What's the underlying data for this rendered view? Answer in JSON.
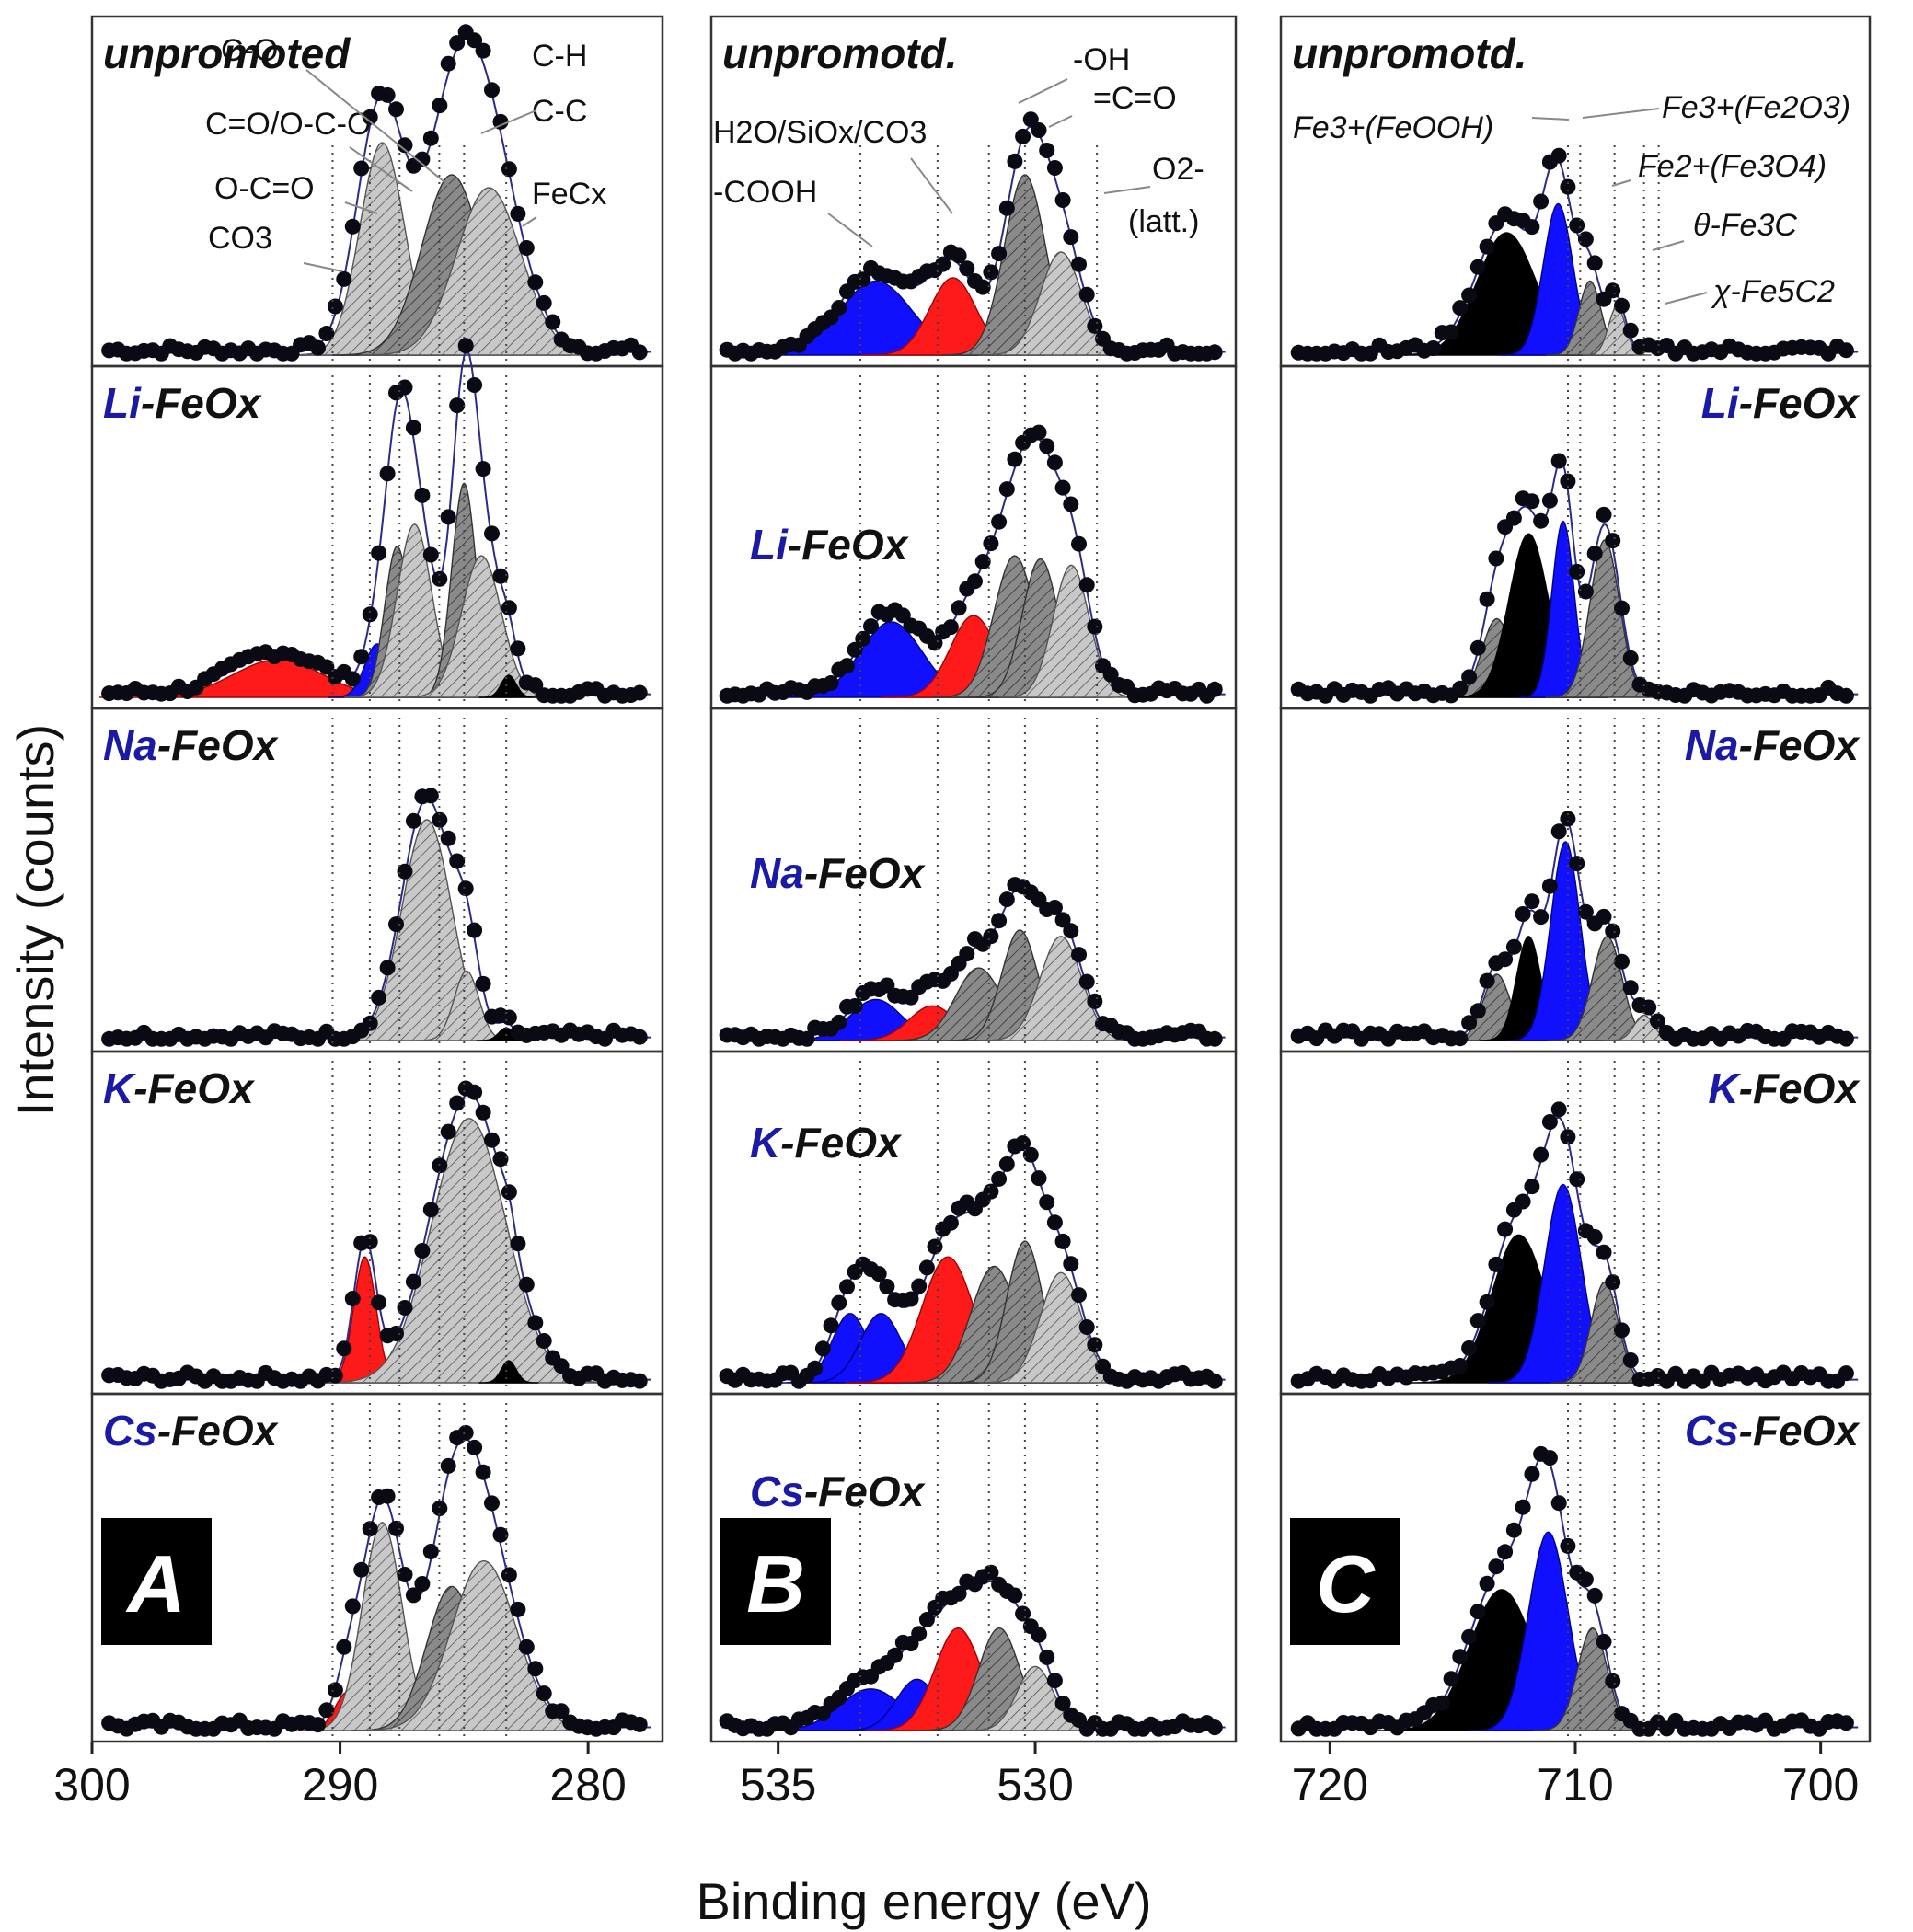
{
  "figure": {
    "y_axis_label": "Intensity (counts)",
    "x_axis_label": "Binding energy (eV)",
    "panel_letters": [
      "A",
      "B",
      "C"
    ]
  },
  "colors": {
    "fe_ox_navy": "#1a1aa6",
    "component_red": "#ff1a1a",
    "component_blue": "#1010ff",
    "component_black": "#000000",
    "component_dark_gray": "#7a7a7a",
    "component_light_gray": "#c8c8c8",
    "envelope": "#2b2b8c",
    "data_points": "#0a0a14"
  },
  "chart_data": [
    {
      "type": "line",
      "id": "A",
      "region": "C 1s",
      "x_range": [
        300,
        277
      ],
      "x_ticks": [
        300,
        290,
        280
      ],
      "reference_lines": [
        290.3,
        288.8,
        287.6,
        286.0,
        285.0,
        283.3
      ],
      "annotations": [
        "unpromoted",
        "C-O",
        "C-H",
        "C-C",
        "C=O/O-C-O",
        "O-C=O",
        "CO3",
        "FeCx"
      ],
      "rows": [
        {
          "label_prefix": "",
          "label_suffix": "unpromoted",
          "components": [
            {
              "center": 289.2,
              "height": 0.08,
              "width": 0.8,
              "color": "blue"
            },
            {
              "center": 288.3,
              "height": 0.66,
              "width": 0.9,
              "color": "light_gray"
            },
            {
              "center": 285.5,
              "height": 0.56,
              "width": 1.2,
              "color": "dark_gray"
            },
            {
              "center": 284.0,
              "height": 0.52,
              "width": 1.3,
              "color": "light_gray"
            }
          ]
        },
        {
          "label_prefix": "Li",
          "label_suffix": "-FeOx",
          "components": [
            {
              "center": 292.5,
              "height": 0.12,
              "width": 1.8,
              "color": "red"
            },
            {
              "center": 288.5,
              "height": 0.17,
              "width": 0.5,
              "color": "blue"
            },
            {
              "center": 287.7,
              "height": 0.48,
              "width": 0.5,
              "color": "dark_gray"
            },
            {
              "center": 287.0,
              "height": 0.55,
              "width": 0.7,
              "color": "light_gray"
            },
            {
              "center": 285.0,
              "height": 0.68,
              "width": 0.5,
              "color": "dark_gray"
            },
            {
              "center": 284.3,
              "height": 0.45,
              "width": 0.8,
              "color": "light_gray"
            },
            {
              "center": 283.2,
              "height": 0.07,
              "width": 0.3,
              "color": "black"
            }
          ]
        },
        {
          "label_prefix": "Na",
          "label_suffix": "-FeOx",
          "components": [
            {
              "center": 286.5,
              "height": 0.7,
              "width": 1.0,
              "color": "light_gray"
            },
            {
              "center": 284.9,
              "height": 0.22,
              "width": 0.5,
              "color": "light_gray"
            },
            {
              "center": 283.3,
              "height": 0.04,
              "width": 0.3,
              "color": "black"
            }
          ]
        },
        {
          "label_prefix": "K",
          "label_suffix": "-FeOx",
          "components": [
            {
              "center": 289.0,
              "height": 0.4,
              "width": 0.45,
              "color": "red"
            },
            {
              "center": 284.8,
              "height": 0.84,
              "width": 1.5,
              "color": "light_gray"
            },
            {
              "center": 283.2,
              "height": 0.07,
              "width": 0.3,
              "color": "black"
            }
          ]
        },
        {
          "label_prefix": "Cs",
          "label_suffix": "-FeOx",
          "components": [
            {
              "center": 289.7,
              "height": 0.12,
              "width": 0.5,
              "color": "red"
            },
            {
              "center": 288.3,
              "height": 0.65,
              "width": 0.8,
              "color": "light_gray"
            },
            {
              "center": 285.5,
              "height": 0.45,
              "width": 1.0,
              "color": "dark_gray"
            },
            {
              "center": 284.2,
              "height": 0.53,
              "width": 1.3,
              "color": "light_gray"
            }
          ]
        }
      ]
    },
    {
      "type": "line",
      "id": "B",
      "region": "O 1s",
      "x_range": [
        536.3,
        526.1
      ],
      "x_ticks": [
        535,
        530
      ],
      "reference_lines": [
        533.4,
        531.9,
        530.9,
        530.2,
        528.8
      ],
      "annotations": [
        "unpromotd.",
        "-OH",
        "=C=O",
        "O2-",
        "(latt.)",
        "H2O/SiOx/CO3",
        "-COOH"
      ],
      "rows": [
        {
          "label_prefix": "",
          "label_suffix": "unpromotd.",
          "components": [
            {
              "center": 533.1,
              "height": 0.23,
              "width": 0.7,
              "color": "blue"
            },
            {
              "center": 531.6,
              "height": 0.24,
              "width": 0.45,
              "color": "red"
            },
            {
              "center": 530.2,
              "height": 0.56,
              "width": 0.4,
              "color": "dark_gray"
            },
            {
              "center": 529.5,
              "height": 0.32,
              "width": 0.4,
              "color": "light_gray"
            }
          ]
        },
        {
          "label_prefix": "Li",
          "label_suffix": "-FeOx",
          "components": [
            {
              "center": 532.8,
              "height": 0.24,
              "width": 0.6,
              "color": "blue"
            },
            {
              "center": 531.2,
              "height": 0.26,
              "width": 0.45,
              "color": "red"
            },
            {
              "center": 530.4,
              "height": 0.45,
              "width": 0.4,
              "color": "dark_gray"
            },
            {
              "center": 529.9,
              "height": 0.44,
              "width": 0.35,
              "color": "dark_gray"
            },
            {
              "center": 529.3,
              "height": 0.42,
              "width": 0.35,
              "color": "light_gray"
            }
          ]
        },
        {
          "label_prefix": "Na",
          "label_suffix": "-FeOx",
          "components": [
            {
              "center": 533.1,
              "height": 0.13,
              "width": 0.5,
              "color": "blue"
            },
            {
              "center": 532.0,
              "height": 0.11,
              "width": 0.45,
              "color": "red"
            },
            {
              "center": 531.1,
              "height": 0.23,
              "width": 0.45,
              "color": "dark_gray"
            },
            {
              "center": 530.3,
              "height": 0.35,
              "width": 0.35,
              "color": "dark_gray"
            },
            {
              "center": 529.5,
              "height": 0.33,
              "width": 0.4,
              "color": "light_gray"
            }
          ]
        },
        {
          "label_prefix": "K",
          "label_suffix": "-FeOx",
          "components": [
            {
              "center": 533.6,
              "height": 0.22,
              "width": 0.35,
              "color": "blue"
            },
            {
              "center": 533.0,
              "height": 0.22,
              "width": 0.4,
              "color": "blue"
            },
            {
              "center": 531.7,
              "height": 0.4,
              "width": 0.5,
              "color": "red"
            },
            {
              "center": 530.8,
              "height": 0.37,
              "width": 0.45,
              "color": "dark_gray"
            },
            {
              "center": 530.2,
              "height": 0.45,
              "width": 0.35,
              "color": "dark_gray"
            },
            {
              "center": 529.5,
              "height": 0.35,
              "width": 0.4,
              "color": "light_gray"
            }
          ]
        },
        {
          "label_prefix": "Cs",
          "label_suffix": "-FeOx",
          "components": [
            {
              "center": 533.2,
              "height": 0.13,
              "width": 0.6,
              "color": "blue"
            },
            {
              "center": 532.3,
              "height": 0.16,
              "width": 0.4,
              "color": "blue"
            },
            {
              "center": 531.5,
              "height": 0.32,
              "width": 0.45,
              "color": "red"
            },
            {
              "center": 530.7,
              "height": 0.32,
              "width": 0.4,
              "color": "dark_gray"
            },
            {
              "center": 530.0,
              "height": 0.2,
              "width": 0.35,
              "color": "light_gray"
            }
          ]
        }
      ]
    },
    {
      "type": "line",
      "id": "C",
      "region": "Fe 2p3/2",
      "x_range": [
        722,
        698
      ],
      "x_ticks": [
        720,
        710,
        700
      ],
      "reference_lines": [
        710.3,
        709.8,
        708.4,
        707.2,
        706.6
      ],
      "annotations": [
        "unpromotd.",
        "Fe3+(FeOOH)",
        "Fe3+(Fe2O3)",
        "Fe2+(Fe3O4)",
        "θ-Fe3C",
        "χ-Fe5C2"
      ],
      "rows": [
        {
          "label_prefix": "",
          "label_suffix": "unpromotd.",
          "components": [
            {
              "center": 712.8,
              "height": 0.38,
              "width": 1.2,
              "color": "black"
            },
            {
              "center": 710.7,
              "height": 0.47,
              "width": 0.6,
              "color": "blue"
            },
            {
              "center": 709.4,
              "height": 0.23,
              "width": 0.45,
              "color": "dark_gray"
            },
            {
              "center": 708.3,
              "height": 0.15,
              "width": 0.35,
              "color": "light_gray"
            }
          ]
        },
        {
          "label_prefix": "Li",
          "label_suffix": "-FeOx",
          "components": [
            {
              "center": 713.2,
              "height": 0.25,
              "width": 0.6,
              "color": "dark_gray"
            },
            {
              "center": 711.9,
              "height": 0.52,
              "width": 0.8,
              "color": "black"
            },
            {
              "center": 710.5,
              "height": 0.56,
              "width": 0.45,
              "color": "blue"
            },
            {
              "center": 708.8,
              "height": 0.5,
              "width": 0.6,
              "color": "dark_gray"
            }
          ]
        },
        {
          "label_prefix": "Na",
          "label_suffix": "-FeOx",
          "components": [
            {
              "center": 713.2,
              "height": 0.21,
              "width": 0.55,
              "color": "dark_gray"
            },
            {
              "center": 711.9,
              "height": 0.33,
              "width": 0.5,
              "color": "black"
            },
            {
              "center": 710.4,
              "height": 0.63,
              "width": 0.6,
              "color": "blue"
            },
            {
              "center": 708.7,
              "height": 0.33,
              "width": 0.6,
              "color": "dark_gray"
            },
            {
              "center": 707.2,
              "height": 0.08,
              "width": 0.4,
              "color": "light_gray"
            }
          ]
        },
        {
          "label_prefix": "K",
          "label_suffix": "-FeOx",
          "components": [
            {
              "center": 712.3,
              "height": 0.47,
              "width": 1.1,
              "color": "black"
            },
            {
              "center": 710.5,
              "height": 0.63,
              "width": 0.75,
              "color": "blue"
            },
            {
              "center": 708.8,
              "height": 0.32,
              "width": 0.55,
              "color": "dark_gray"
            }
          ]
        },
        {
          "label_prefix": "Cs",
          "label_suffix": "-FeOx",
          "components": [
            {
              "center": 713.0,
              "height": 0.44,
              "width": 1.3,
              "color": "black"
            },
            {
              "center": 711.1,
              "height": 0.62,
              "width": 0.8,
              "color": "blue"
            },
            {
              "center": 709.3,
              "height": 0.32,
              "width": 0.6,
              "color": "dark_gray"
            }
          ]
        }
      ]
    }
  ]
}
